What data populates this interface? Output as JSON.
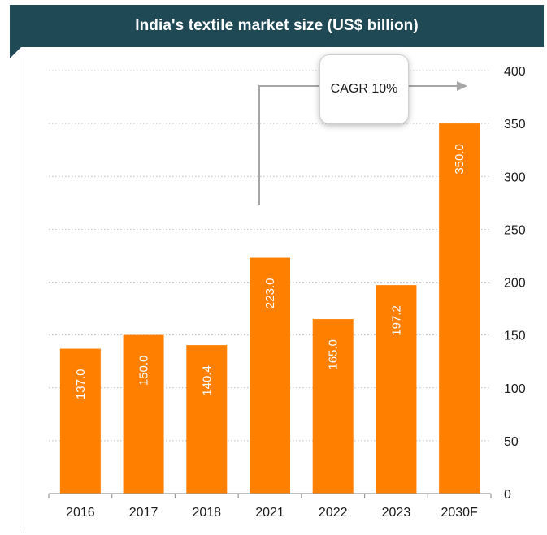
{
  "chart_data": {
    "type": "bar",
    "title": "India's textile market size (US$ billion)",
    "categories": [
      "2016",
      "2017",
      "2018",
      "2021",
      "2022",
      "2023",
      "2030F"
    ],
    "values": [
      137.0,
      150.0,
      140.4,
      223.0,
      165.0,
      197.2,
      350.0
    ],
    "value_labels": [
      "137.0",
      "150.0",
      "140.4",
      "223.0",
      "165.0",
      "197.2",
      "350.0"
    ],
    "ylim": [
      0,
      400
    ],
    "yticks": [
      "0",
      "50",
      "100",
      "150",
      "200",
      "250",
      "300",
      "350",
      "400"
    ],
    "y_axis_side": "right",
    "grid": true,
    "bar_color": "#ff7f00",
    "annotation": "CAGR 10%"
  },
  "colors": {
    "title_background": "#1f4a55",
    "bar": "#ff7f00"
  }
}
